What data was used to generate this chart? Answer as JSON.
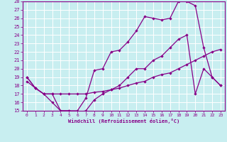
{
  "xlabel": "Windchill (Refroidissement éolien,°C)",
  "background_color": "#c8eef0",
  "grid_color": "#b8dde0",
  "line_color": "#880088",
  "xlim": [
    -0.5,
    23.5
  ],
  "ylim": [
    15,
    28
  ],
  "xticks": [
    0,
    1,
    2,
    3,
    4,
    5,
    6,
    7,
    8,
    9,
    10,
    11,
    12,
    13,
    14,
    15,
    16,
    17,
    18,
    19,
    20,
    21,
    22,
    23
  ],
  "yticks": [
    15,
    16,
    17,
    18,
    19,
    20,
    21,
    22,
    23,
    24,
    25,
    26,
    27,
    28
  ],
  "line1_x": [
    0,
    1,
    2,
    3,
    4,
    5,
    6,
    7,
    8,
    9,
    10,
    11,
    12,
    13,
    14,
    15,
    16,
    17,
    18,
    19,
    20,
    21,
    22,
    23
  ],
  "line1_y": [
    19.0,
    17.7,
    17.0,
    16.0,
    15.0,
    15.0,
    15.0,
    16.5,
    19.8,
    20.0,
    22.0,
    22.2,
    23.2,
    24.5,
    26.2,
    26.0,
    25.8,
    26.0,
    28.0,
    28.0,
    27.5,
    22.5,
    19.0,
    18.0
  ],
  "line2_x": [
    0,
    1,
    2,
    3,
    4,
    5,
    6,
    7,
    8,
    9,
    10,
    11,
    12,
    13,
    14,
    15,
    16,
    17,
    18,
    19,
    20,
    21,
    22,
    23
  ],
  "line2_y": [
    19.0,
    17.7,
    17.0,
    17.0,
    15.0,
    15.0,
    14.8,
    15.0,
    16.3,
    17.0,
    17.5,
    18.0,
    19.0,
    20.0,
    20.0,
    21.0,
    21.5,
    22.5,
    23.5,
    24.0,
    17.0,
    20.0,
    19.0,
    18.0
  ],
  "line3_x": [
    0,
    1,
    2,
    3,
    4,
    5,
    6,
    7,
    8,
    9,
    10,
    11,
    12,
    13,
    14,
    15,
    16,
    17,
    18,
    19,
    20,
    21,
    22,
    23
  ],
  "line3_y": [
    18.5,
    17.7,
    17.0,
    17.0,
    17.0,
    17.0,
    17.0,
    17.0,
    17.2,
    17.3,
    17.5,
    17.7,
    18.0,
    18.3,
    18.5,
    19.0,
    19.3,
    19.5,
    20.0,
    20.5,
    21.0,
    21.5,
    22.0,
    22.3
  ]
}
